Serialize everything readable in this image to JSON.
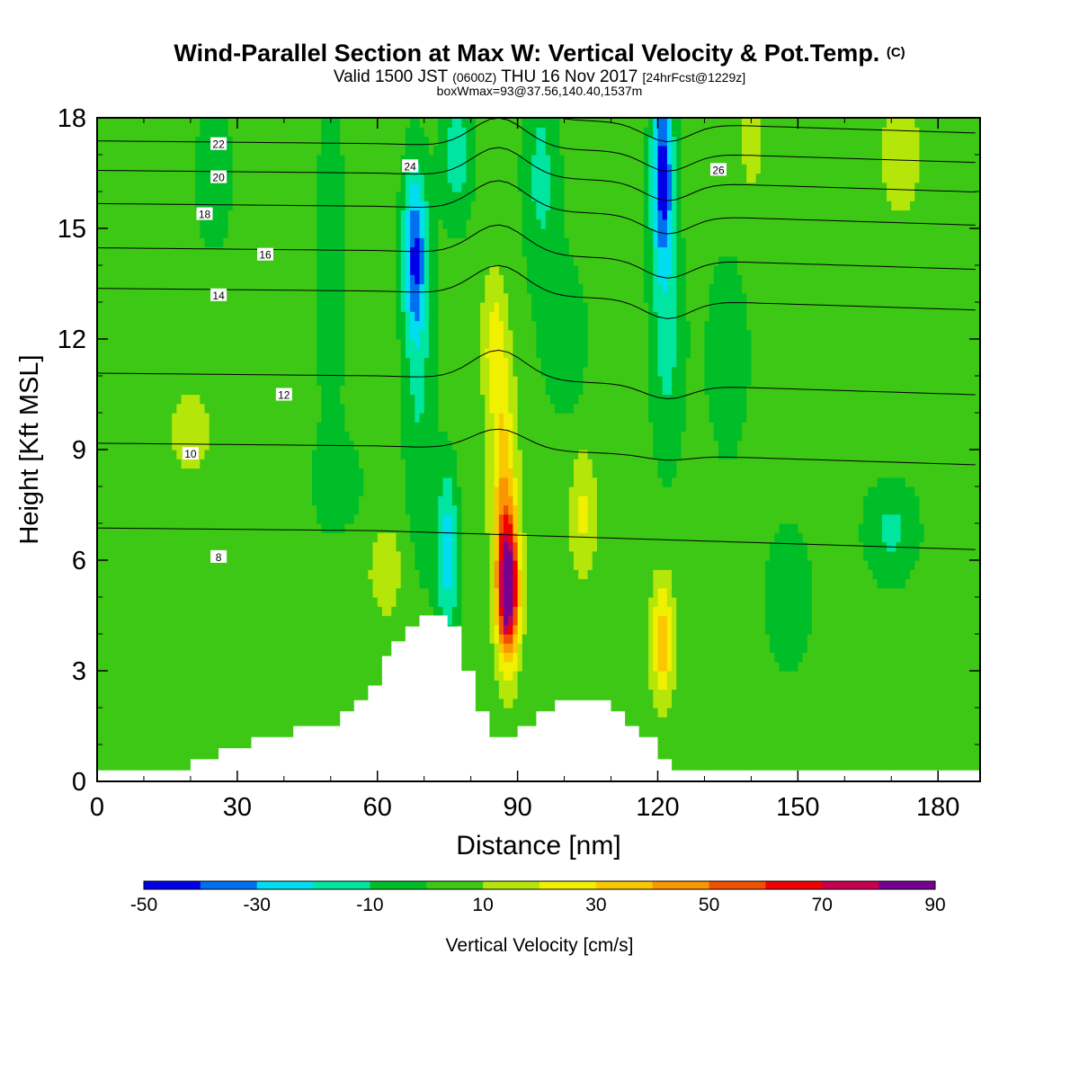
{
  "titles": {
    "main": "Wind-Parallel Section at Max W: Vertical Velocity & Pot.Temp.",
    "copyright": "(C)",
    "valid_prefix": "Valid 1500 JST",
    "valid_utc": "(0600Z)",
    "valid_date": "THU 16 Nov 2017",
    "forecast": "[24hrFcst@1229z]",
    "box_info": "boxWmax=93@37.56,140.40,1537m"
  },
  "chart_data": {
    "type": "heatmap",
    "xlabel": "Distance [nm]",
    "ylabel": "Height [Kft MSL]",
    "xlim": [
      0,
      189
    ],
    "ylim": [
      0,
      18
    ],
    "x_ticks": [
      0,
      30,
      60,
      90,
      120,
      150,
      180
    ],
    "y_ticks": [
      0,
      3,
      6,
      9,
      12,
      15,
      18
    ],
    "x_tick_labels": [
      "0",
      "30",
      "60",
      "90",
      "120",
      "150",
      "180"
    ],
    "y_tick_labels": [
      "0",
      "3",
      "6",
      "9",
      "12",
      "15",
      "18"
    ],
    "colorbar": {
      "label": "Vertical Velocity [cm/s]",
      "levels": [
        -50,
        -40,
        -30,
        -20,
        -10,
        0,
        10,
        20,
        30,
        40,
        50,
        60,
        70,
        80,
        90
      ],
      "label_values": [
        "-50",
        "-30",
        "-10",
        "10",
        "30",
        "50",
        "70",
        "90"
      ],
      "colors": [
        "#0000e8",
        "#0070f0",
        "#00dcf0",
        "#00e6a0",
        "#00be28",
        "#3cc814",
        "#b4e60a",
        "#f0f000",
        "#fac800",
        "#fa9600",
        "#f05000",
        "#f00000",
        "#c80050",
        "#780090"
      ]
    },
    "background_value": 5,
    "velocity_features": [
      {
        "x": 88,
        "y": 5.2,
        "sx": 2.2,
        "sy": 1.8,
        "amp": 90
      },
      {
        "x": 87,
        "y": 8.0,
        "sx": 2.6,
        "sy": 3.0,
        "amp": 32
      },
      {
        "x": 85,
        "y": 11.8,
        "sx": 2.5,
        "sy": 1.8,
        "amp": 20
      },
      {
        "x": 121,
        "y": 3.8,
        "sx": 2.3,
        "sy": 1.6,
        "amp": 32
      },
      {
        "x": 104,
        "y": 7.3,
        "sx": 2.6,
        "sy": 1.6,
        "amp": 18
      },
      {
        "x": 20,
        "y": 9.5,
        "sx": 6.0,
        "sy": 1.6,
        "amp": 8
      },
      {
        "x": 62,
        "y": 5.8,
        "sx": 5.0,
        "sy": 1.6,
        "amp": 9
      },
      {
        "x": 140,
        "y": 17.5,
        "sx": 2.5,
        "sy": 1.6,
        "amp": 10
      },
      {
        "x": 172,
        "y": 17.0,
        "sx": 4.5,
        "sy": 1.8,
        "amp": 11
      },
      {
        "x": 68,
        "y": 14.3,
        "sx": 2.6,
        "sy": 2.4,
        "amp": -42
      },
      {
        "x": 69,
        "y": 10.0,
        "sx": 3.5,
        "sy": 5.0,
        "amp": -14
      },
      {
        "x": 121,
        "y": 16.5,
        "sx": 2.4,
        "sy": 2.6,
        "amp": -48
      },
      {
        "x": 122,
        "y": 12.0,
        "sx": 3.8,
        "sy": 3.5,
        "amp": -18
      },
      {
        "x": 75,
        "y": 6.2,
        "sx": 2.3,
        "sy": 2.3,
        "amp": -32
      },
      {
        "x": 77,
        "y": 17.0,
        "sx": 3.5,
        "sy": 2.0,
        "amp": -20
      },
      {
        "x": 95,
        "y": 16.5,
        "sx": 4.0,
        "sy": 2.8,
        "amp": -18
      },
      {
        "x": 50,
        "y": 14.0,
        "sx": 3.5,
        "sy": 5.0,
        "amp": -12
      },
      {
        "x": 135,
        "y": 11.5,
        "sx": 5.0,
        "sy": 3.0,
        "amp": -12
      },
      {
        "x": 170,
        "y": 6.8,
        "sx": 6.0,
        "sy": 1.4,
        "amp": -17
      },
      {
        "x": 148,
        "y": 5.0,
        "sx": 5.0,
        "sy": 2.0,
        "amp": -15
      },
      {
        "x": 25,
        "y": 16.5,
        "sx": 6.0,
        "sy": 3.0,
        "amp": -8
      },
      {
        "x": 100,
        "y": 12.0,
        "sx": 6.0,
        "sy": 2.5,
        "amp": -10
      },
      {
        "x": 52,
        "y": 8.0,
        "sx": 8.0,
        "sy": 1.5,
        "amp": -8
      }
    ],
    "theta_contours": [
      {
        "value": 8,
        "base_y": 6.8,
        "label": "8",
        "label_x": 26,
        "label_y": 6.1
      },
      {
        "value": 10,
        "base_y": 9.1,
        "label": "10",
        "label_x": 20,
        "label_y": 8.9
      },
      {
        "value": 12,
        "base_y": 11.0,
        "label": "12",
        "label_x": 40,
        "label_y": 10.5
      },
      {
        "value": 14,
        "base_y": 13.3,
        "label": "14",
        "label_x": 26,
        "label_y": 13.2
      },
      {
        "value": 16,
        "base_y": 14.4,
        "label": "16",
        "label_x": 36,
        "label_y": 14.3
      },
      {
        "value": 18,
        "base_y": 15.6,
        "label": "18",
        "label_x": 23,
        "label_y": 15.4
      },
      {
        "value": 20,
        "base_y": 16.5,
        "label": "20",
        "label_x": 26,
        "label_y": 16.4
      },
      {
        "value": 22,
        "base_y": 17.3,
        "label": "22",
        "label_x": 26,
        "label_y": 17.3
      },
      {
        "value": 24,
        "base_y": 18.1,
        "label": "24",
        "label_x": 67,
        "label_y": 16.7
      },
      {
        "value": 26,
        "base_y": 18.8,
        "label": "26",
        "label_x": 133,
        "label_y": 16.6
      }
    ],
    "terrain": [
      {
        "x": 0,
        "h": 0.3
      },
      {
        "x": 20,
        "h": 0.3
      },
      {
        "x": 20,
        "h": 0.6
      },
      {
        "x": 26,
        "h": 0.6
      },
      {
        "x": 26,
        "h": 0.9
      },
      {
        "x": 33,
        "h": 0.9
      },
      {
        "x": 33,
        "h": 1.2
      },
      {
        "x": 42,
        "h": 1.2
      },
      {
        "x": 42,
        "h": 1.5
      },
      {
        "x": 52,
        "h": 1.5
      },
      {
        "x": 52,
        "h": 1.9
      },
      {
        "x": 55,
        "h": 1.9
      },
      {
        "x": 55,
        "h": 2.2
      },
      {
        "x": 58,
        "h": 2.2
      },
      {
        "x": 58,
        "h": 2.6
      },
      {
        "x": 61,
        "h": 2.6
      },
      {
        "x": 61,
        "h": 3.4
      },
      {
        "x": 63,
        "h": 3.4
      },
      {
        "x": 63,
        "h": 3.8
      },
      {
        "x": 66,
        "h": 3.8
      },
      {
        "x": 66,
        "h": 4.2
      },
      {
        "x": 69,
        "h": 4.2
      },
      {
        "x": 69,
        "h": 4.5
      },
      {
        "x": 75,
        "h": 4.5
      },
      {
        "x": 75,
        "h": 4.2
      },
      {
        "x": 78,
        "h": 4.2
      },
      {
        "x": 78,
        "h": 3.0
      },
      {
        "x": 81,
        "h": 3.0
      },
      {
        "x": 81,
        "h": 1.9
      },
      {
        "x": 84,
        "h": 1.9
      },
      {
        "x": 84,
        "h": 1.2
      },
      {
        "x": 90,
        "h": 1.2
      },
      {
        "x": 90,
        "h": 1.5
      },
      {
        "x": 94,
        "h": 1.5
      },
      {
        "x": 94,
        "h": 1.9
      },
      {
        "x": 98,
        "h": 1.9
      },
      {
        "x": 98,
        "h": 2.2
      },
      {
        "x": 110,
        "h": 2.2
      },
      {
        "x": 110,
        "h": 1.9
      },
      {
        "x": 113,
        "h": 1.9
      },
      {
        "x": 113,
        "h": 1.5
      },
      {
        "x": 116,
        "h": 1.5
      },
      {
        "x": 116,
        "h": 1.2
      },
      {
        "x": 120,
        "h": 1.2
      },
      {
        "x": 120,
        "h": 0.6
      },
      {
        "x": 123,
        "h": 0.6
      },
      {
        "x": 123,
        "h": 0.3
      },
      {
        "x": 189,
        "h": 0.3
      }
    ]
  }
}
